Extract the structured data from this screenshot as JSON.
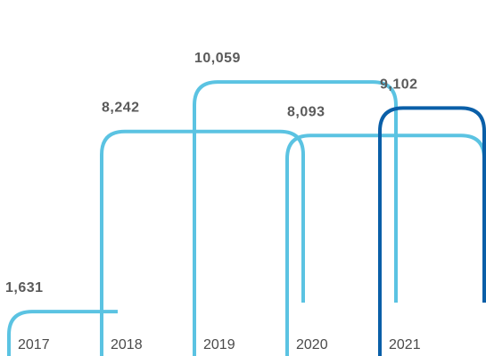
{
  "chart_data": {
    "type": "bar",
    "categories": [
      "2017",
      "2018",
      "2019",
      "2020",
      "2021"
    ],
    "values": [
      1631,
      8242,
      10059,
      8093,
      9102
    ],
    "value_labels": [
      "1,631",
      "8,242",
      "10,059",
      "8,093",
      "9,102"
    ],
    "ylim": [
      0,
      11500
    ],
    "highlight_index": 4,
    "colors": {
      "default": "#5bc3e2",
      "highlight": "#0a5fa8",
      "value_text": "#5a5a5a",
      "year_text": "#4a4a4a"
    },
    "grid": false,
    "legend": "none"
  }
}
